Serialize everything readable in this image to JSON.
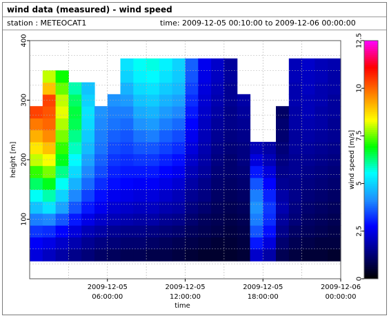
{
  "header": {
    "title": "wind data (measured) - wind speed",
    "station": "station : METEOCAT1",
    "time_range": "time: 2009-12-05 00:10:00 to 2009-12-06 00:00:00"
  },
  "chart_data": {
    "type": "heatmap",
    "title": "wind data (measured) - wind speed",
    "xlabel": "time",
    "ylabel": "height [m]",
    "colorbar_label": "wind speed [m/s]",
    "x_ticks": [
      {
        "line1": "2009-12-05",
        "line2": "06:00:00",
        "hours": 6
      },
      {
        "line1": "2009-12-05",
        "line2": "12:00:00",
        "hours": 12
      },
      {
        "line1": "2009-12-05",
        "line2": "18:00:00",
        "hours": 18
      },
      {
        "line1": "2009-12-06",
        "line2": "00:00:00",
        "hours": 24
      }
    ],
    "xlim_hours": [
      0,
      24
    ],
    "ylim": [
      0,
      400
    ],
    "y_ticks": [
      100,
      200,
      300,
      400
    ],
    "colorbar_ticks": [
      0,
      2.5,
      5,
      7.5,
      10,
      12.5
    ],
    "colorbar_range": [
      0,
      12.5
    ],
    "grid": true,
    "colormap": [
      "#000000",
      "#000080",
      "#0000ff",
      "#1e90ff",
      "#00ffff",
      "#00ff00",
      "#ffff00",
      "#ff8000",
      "#ff0000",
      "#ff00ff"
    ],
    "height_levels_m": [
      40,
      60,
      80,
      100,
      120,
      140,
      160,
      180,
      200,
      220,
      240,
      260,
      280,
      300,
      320,
      340,
      360
    ],
    "profiles": [
      {
        "t": 0.5,
        "ws": [
          2.4,
          2.7,
          3.3,
          4.0,
          4.8,
          5.6,
          6.4,
          7.2,
          8.0,
          8.6,
          9.2,
          9.8,
          10.4,
          null,
          null,
          null,
          null
        ]
      },
      {
        "t": 1.5,
        "ws": [
          2.1,
          2.5,
          3.2,
          4.1,
          5.2,
          6.0,
          6.8,
          7.6,
          8.3,
          9.0,
          9.6,
          10.0,
          10.2,
          10.4,
          9.0,
          8.0,
          null
        ]
      },
      {
        "t": 2.5,
        "ws": [
          1.8,
          2.2,
          2.8,
          3.6,
          4.4,
          5.0,
          5.6,
          6.2,
          6.8,
          7.2,
          7.6,
          7.9,
          8.2,
          8.0,
          7.5,
          7.0,
          null
        ]
      },
      {
        "t": 3.5,
        "ws": [
          1.5,
          1.9,
          2.4,
          3.0,
          3.6,
          4.1,
          4.6,
          5.1,
          5.5,
          5.9,
          6.2,
          6.5,
          6.6,
          6.4,
          6.0,
          null,
          null
        ]
      },
      {
        "t": 4.5,
        "ws": [
          1.3,
          1.6,
          2.0,
          2.5,
          3.0,
          3.4,
          3.8,
          4.1,
          4.4,
          4.7,
          4.9,
          5.1,
          5.2,
          5.0,
          4.8,
          null,
          null
        ]
      },
      {
        "t": 5.5,
        "ws": [
          1.1,
          1.4,
          1.8,
          2.2,
          2.6,
          2.9,
          3.2,
          3.5,
          3.7,
          3.9,
          4.0,
          4.1,
          4.2,
          null,
          null,
          null,
          null
        ]
      },
      {
        "t": 6.5,
        "ws": [
          1.0,
          1.3,
          1.6,
          2.0,
          2.3,
          2.6,
          2.9,
          3.1,
          3.3,
          3.5,
          3.7,
          3.9,
          4.0,
          4.2,
          null,
          null,
          null
        ]
      },
      {
        "t": 7.5,
        "ws": [
          0.9,
          1.2,
          1.5,
          1.9,
          2.2,
          2.5,
          2.8,
          3.0,
          3.2,
          3.4,
          3.6,
          3.8,
          4.0,
          4.3,
          4.6,
          5.0,
          5.2
        ]
      },
      {
        "t": 8.5,
        "ws": [
          0.9,
          1.2,
          1.5,
          1.8,
          2.1,
          2.4,
          2.7,
          3.0,
          3.3,
          3.6,
          3.9,
          4.2,
          4.5,
          4.8,
          5.1,
          5.4,
          5.6
        ]
      },
      {
        "t": 9.5,
        "ws": [
          0.8,
          1.1,
          1.4,
          1.8,
          2.1,
          2.4,
          2.7,
          3.0,
          3.3,
          3.6,
          4.0,
          4.3,
          4.6,
          4.9,
          5.2,
          5.5,
          5.7
        ]
      },
      {
        "t": 10.5,
        "ws": [
          0.8,
          1.0,
          1.3,
          1.6,
          1.9,
          2.2,
          2.5,
          2.8,
          3.1,
          3.4,
          3.7,
          4.0,
          4.3,
          4.6,
          4.9,
          5.2,
          5.4
        ]
      },
      {
        "t": 11.5,
        "ws": [
          0.7,
          0.9,
          1.2,
          1.5,
          1.8,
          2.0,
          2.3,
          2.6,
          2.9,
          3.2,
          3.5,
          3.8,
          4.1,
          4.4,
          4.7,
          4.9,
          5.0
        ]
      },
      {
        "t": 12.5,
        "ws": [
          0.6,
          0.8,
          1.0,
          1.2,
          1.4,
          1.6,
          1.8,
          2.0,
          2.2,
          2.4,
          2.6,
          2.8,
          3.0,
          3.2,
          3.4,
          3.6,
          3.7
        ]
      },
      {
        "t": 13.5,
        "ws": [
          0.5,
          0.7,
          0.9,
          1.0,
          1.2,
          1.4,
          1.5,
          1.7,
          1.8,
          1.9,
          2.0,
          2.1,
          2.2,
          2.3,
          2.4,
          2.5,
          2.6
        ]
      },
      {
        "t": 14.5,
        "ws": [
          0.5,
          0.6,
          0.8,
          0.9,
          1.0,
          1.1,
          1.2,
          1.3,
          1.4,
          1.5,
          1.6,
          1.7,
          1.8,
          1.9,
          2.0,
          2.1,
          2.2
        ]
      },
      {
        "t": 15.5,
        "ws": [
          0.5,
          0.6,
          0.7,
          0.8,
          0.9,
          1.0,
          1.1,
          1.2,
          1.2,
          1.3,
          1.4,
          1.5,
          1.5,
          1.6,
          1.6,
          1.7,
          1.7
        ]
      },
      {
        "t": 16.5,
        "ws": [
          0.6,
          0.7,
          0.8,
          0.9,
          1.0,
          1.1,
          1.2,
          1.3,
          1.4,
          1.4,
          1.5,
          1.6,
          1.7,
          1.8,
          null,
          null,
          null
        ]
      },
      {
        "t": 17.5,
        "ws": [
          2.2,
          3.0,
          3.6,
          4.0,
          4.2,
          4.0,
          3.6,
          3.0,
          2.4,
          2.0,
          null,
          null,
          null,
          null,
          null,
          null,
          null
        ]
      },
      {
        "t": 18.5,
        "ws": [
          1.8,
          2.4,
          2.9,
          3.2,
          3.3,
          3.1,
          2.8,
          2.4,
          2.0,
          1.8,
          null,
          null,
          null,
          null,
          null,
          null,
          null
        ]
      },
      {
        "t": 19.5,
        "ws": [
          0.9,
          1.2,
          1.5,
          1.7,
          1.9,
          1.8,
          1.6,
          1.5,
          1.4,
          1.3,
          1.2,
          1.2,
          1.1,
          null,
          null,
          null,
          null
        ]
      },
      {
        "t": 20.5,
        "ws": [
          0.7,
          0.9,
          1.1,
          1.3,
          1.4,
          1.5,
          1.5,
          1.6,
          1.6,
          1.7,
          1.7,
          1.8,
          1.8,
          1.9,
          1.9,
          2.0,
          2.0
        ]
      },
      {
        "t": 21.5,
        "ws": [
          0.6,
          0.8,
          1.0,
          1.1,
          1.2,
          1.3,
          1.4,
          1.5,
          1.6,
          1.7,
          1.8,
          1.9,
          2.0,
          2.0,
          2.1,
          2.1,
          2.2
        ]
      },
      {
        "t": 22.5,
        "ws": [
          0.6,
          0.7,
          0.9,
          1.0,
          1.1,
          1.2,
          1.3,
          1.4,
          1.5,
          1.6,
          1.7,
          1.8,
          1.8,
          1.9,
          1.9,
          2.0,
          2.0
        ]
      },
      {
        "t": 23.5,
        "ws": [
          0.5,
          0.7,
          0.8,
          0.9,
          1.0,
          1.1,
          1.2,
          1.3,
          1.4,
          1.5,
          1.6,
          1.6,
          1.7,
          1.7,
          1.8,
          1.8,
          1.9
        ]
      }
    ]
  }
}
